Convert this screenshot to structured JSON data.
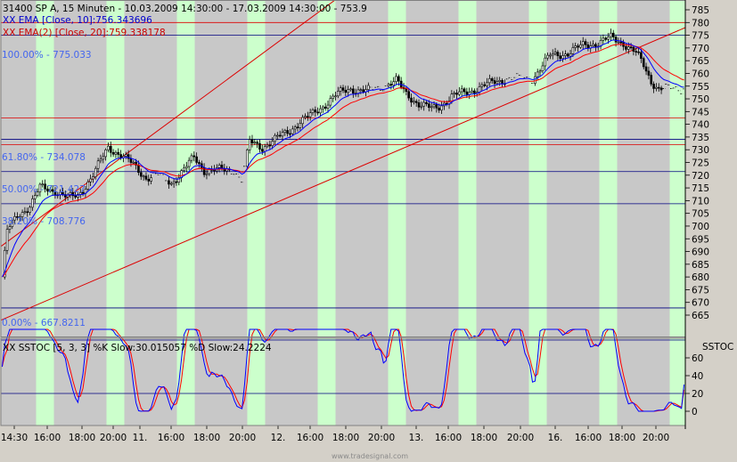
{
  "header": {
    "symbol_line": "31400  SP A, 15 Minuten - 10.03.2009 14:30:00 - 17.03.2009 14:30:00 - 753.9",
    "ema10_label": "XX EMA [Close, 10]:756.343696",
    "ema20_label": "XX EMA(2) [Close, 20]:759.338178"
  },
  "fibonacci": [
    {
      "label": "100.00% - 775.033",
      "value": 775.033
    },
    {
      "label": "61.80% - 734.078",
      "value": 734.078
    },
    {
      "label": "50.00% - 721.427",
      "value": 721.427
    },
    {
      "label": "38.20% - 708.776",
      "value": 708.776
    },
    {
      "label": "0.00% - 667.8211",
      "value": 667.8211
    }
  ],
  "oscillator": {
    "title": "XX SSTOC [5, 3, 3] %K Slow:30.015057 %D Slow:24.2224",
    "panel_label": "SSTOC",
    "yticks": [
      "60",
      "40",
      "20",
      "0"
    ],
    "levels": [
      80,
      20
    ]
  },
  "watermark": "www.tradesignal.com",
  "colors": {
    "bg_gray": "#c8c8c8",
    "bg_green": "#ccffcc",
    "candle": "#000000",
    "ema10": "#0000ff",
    "ema20": "#ff0000",
    "hline": "#000080",
    "redline": "#dd0000"
  },
  "chart_data": [
    {
      "type": "candlestick",
      "title": "31400  SP A, 15 Minuten",
      "ylim": [
        661,
        790
      ],
      "yticks": [
        665,
        670,
        675,
        680,
        685,
        690,
        695,
        700,
        705,
        710,
        715,
        720,
        725,
        730,
        735,
        740,
        745,
        750,
        755,
        760,
        765,
        770,
        775,
        780,
        785
      ],
      "x_ticks": [
        "14:30",
        "16:00",
        "18:00",
        "20:00",
        "11.",
        "16:00",
        "18:00",
        "20:00",
        "12.",
        "16:00",
        "18:00",
        "20:00",
        "13.",
        "16:00",
        "18:00",
        "20:00",
        "16.",
        "16:00",
        "18:00",
        "20:00"
      ],
      "horizontal_lines": [
        780,
        775.033,
        742.5,
        734.078,
        732,
        721.427,
        708.776,
        667.8211
      ],
      "close_path": [
        [
          0,
          680
        ],
        [
          2,
          698
        ],
        [
          6,
          704
        ],
        [
          11,
          708
        ],
        [
          15,
          715
        ],
        [
          21,
          714
        ],
        [
          26,
          711
        ],
        [
          30,
          712
        ],
        [
          36,
          720
        ],
        [
          42,
          731
        ],
        [
          47,
          728
        ],
        [
          52,
          724
        ],
        [
          57,
          719
        ],
        [
          62,
          720
        ],
        [
          67,
          717
        ],
        [
          71,
          721
        ],
        [
          76,
          727
        ],
        [
          80,
          722
        ],
        [
          85,
          722
        ],
        [
          92,
          722
        ],
        [
          95,
          718
        ],
        [
          98,
          733
        ],
        [
          103,
          731
        ],
        [
          108,
          734
        ],
        [
          113,
          737
        ],
        [
          118,
          741
        ],
        [
          123,
          744
        ],
        [
          128,
          748
        ],
        [
          133,
          752
        ],
        [
          138,
          754
        ],
        [
          144,
          753
        ],
        [
          151,
          755
        ],
        [
          156,
          757
        ],
        [
          160,
          752
        ],
        [
          165,
          748
        ],
        [
          170,
          746
        ],
        [
          173,
          747
        ],
        [
          178,
          751
        ],
        [
          185,
          753
        ],
        [
          193,
          756
        ],
        [
          200,
          758
        ],
        [
          210,
          758
        ],
        [
          217,
          767
        ],
        [
          224,
          768
        ],
        [
          230,
          771
        ],
        [
          236,
          772
        ],
        [
          241,
          774
        ],
        [
          246,
          772
        ],
        [
          251,
          768
        ],
        [
          254,
          763
        ],
        [
          257,
          757
        ],
        [
          260,
          754
        ],
        [
          265,
          754
        ],
        [
          270,
          753.9
        ]
      ],
      "series": [
        {
          "name": "EMA [Close, 10]",
          "last": 756.343696
        },
        {
          "name": "EMA(2) [Close, 20]",
          "last": 759.338178
        }
      ]
    },
    {
      "type": "line",
      "title": "SSTOC [5, 3, 3]",
      "ylim": [
        -6,
        94
      ],
      "series": [
        {
          "name": "%K Slow",
          "last": 30.015057
        },
        {
          "name": "%D Slow",
          "last": 24.2224
        }
      ]
    }
  ]
}
